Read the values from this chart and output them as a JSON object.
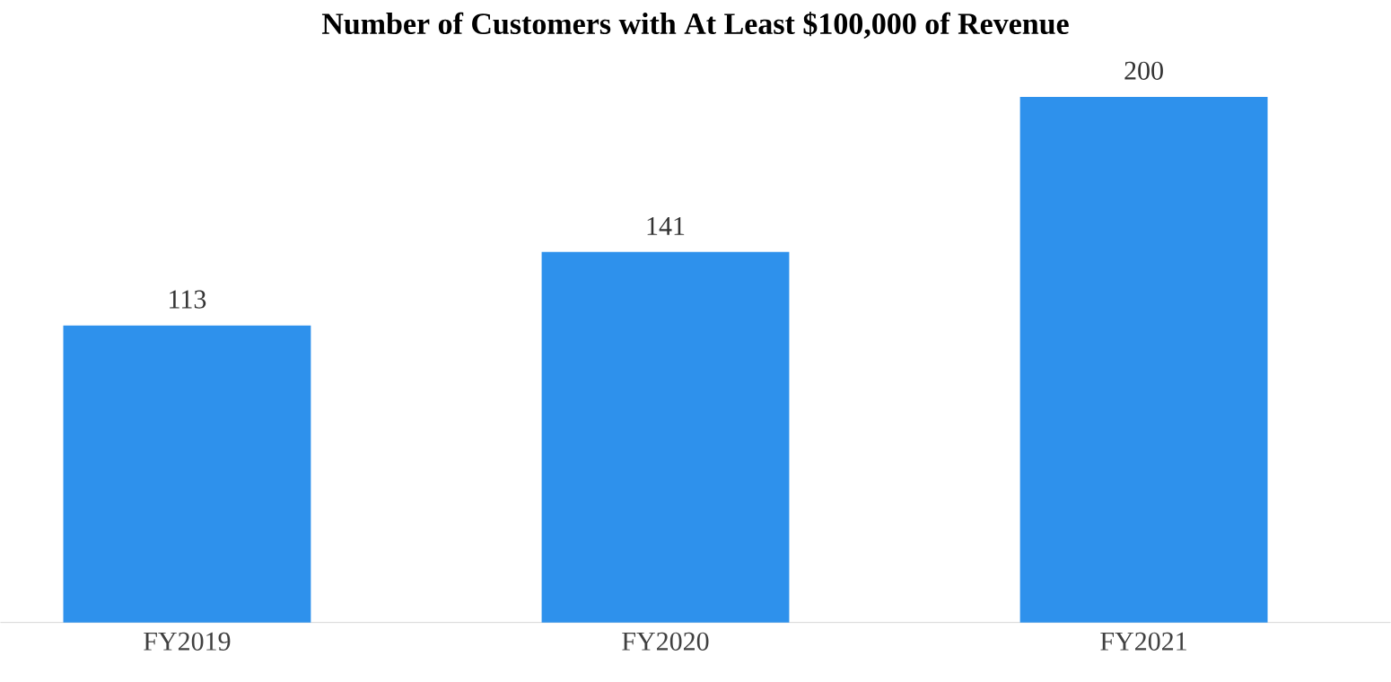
{
  "chart_data": {
    "type": "bar",
    "title": "Number of Customers with At Least $100,000 of Revenue",
    "categories": [
      "FY2019",
      "FY2020",
      "FY2021"
    ],
    "values": [
      113,
      141,
      200
    ],
    "color": "#2e91ec",
    "data_labels": true
  }
}
